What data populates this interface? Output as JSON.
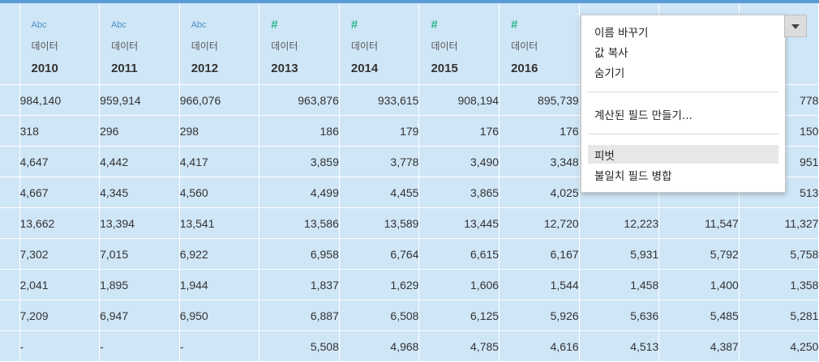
{
  "columns": [
    {
      "type": "Abc",
      "source": "데이터",
      "year": "2010"
    },
    {
      "type": "Abc",
      "source": "데이터",
      "year": "2011"
    },
    {
      "type": "Abc",
      "source": "데이터",
      "year": "2012"
    },
    {
      "type": "#",
      "source": "데이터",
      "year": "2013"
    },
    {
      "type": "#",
      "source": "데이터",
      "year": "2014"
    },
    {
      "type": "#",
      "source": "데이터",
      "year": "2015"
    },
    {
      "type": "#",
      "source": "데이터",
      "year": "2016"
    },
    {
      "type": "",
      "source": "",
      "year": ""
    },
    {
      "type": "",
      "source": "",
      "year": ""
    },
    {
      "type": "",
      "source": "",
      "year": ""
    }
  ],
  "rows": [
    [
      "984,140",
      "959,914",
      "966,076",
      "963,876",
      "933,615",
      "908,194",
      "895,739",
      "",
      "",
      "778"
    ],
    [
      "318",
      "296",
      "298",
      "186",
      "179",
      "176",
      "176",
      "",
      "",
      "150"
    ],
    [
      "4,647",
      "4,442",
      "4,417",
      "3,859",
      "3,778",
      "3,490",
      "3,348",
      "",
      "",
      "951"
    ],
    [
      "4,667",
      "4,345",
      "4,560",
      "4,499",
      "4,455",
      "3,865",
      "4,025",
      "",
      "",
      "513"
    ],
    [
      "13,662",
      "13,394",
      "13,541",
      "13,586",
      "13,589",
      "13,445",
      "12,720",
      "12,223",
      "11,547",
      "11,327"
    ],
    [
      "7,302",
      "7,015",
      "6,922",
      "6,958",
      "6,764",
      "6,615",
      "6,167",
      "5,931",
      "5,792",
      "5,758"
    ],
    [
      "2,041",
      "1,895",
      "1,944",
      "1,837",
      "1,629",
      "1,606",
      "1,544",
      "1,458",
      "1,400",
      "1,358"
    ],
    [
      "7,209",
      "6,947",
      "6,950",
      "6,887",
      "6,508",
      "6,125",
      "5,926",
      "5,636",
      "5,485",
      "5,281"
    ],
    [
      "-",
      "-",
      "-",
      "5,508",
      "4,968",
      "4,785",
      "4,616",
      "4,513",
      "4,387",
      "4,250"
    ]
  ],
  "context_menu": {
    "rename": "이름 바꾸기",
    "copy_values": "값 복사",
    "hide": "숨기기",
    "create_calculated_field": "계산된 필드 만들기...",
    "pivot": "피벗",
    "merge_mismatched_fields": "불일치 필드 병합"
  },
  "dropdown_icon": "chevron-down-icon"
}
